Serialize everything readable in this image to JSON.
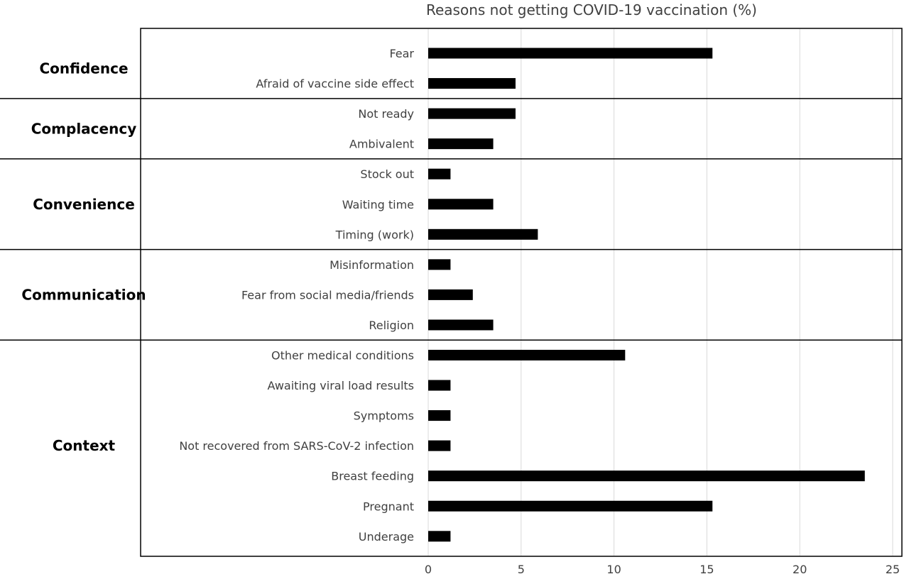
{
  "chart_data": {
    "type": "bar",
    "orientation": "horizontal",
    "title": "Reasons not getting COVID-19 vaccination (%)",
    "xlim": [
      0,
      25
    ],
    "xticks": [
      0,
      5,
      10,
      15,
      20,
      25
    ],
    "grid": true,
    "bar_color": "#000000",
    "groups": [
      {
        "name": "Confidence",
        "categories": [
          "Fear",
          "Afraid of vaccine side effect"
        ],
        "values": [
          15.3,
          4.7
        ]
      },
      {
        "name": "Complacency",
        "categories": [
          "Not ready",
          "Ambivalent"
        ],
        "values": [
          4.7,
          3.5
        ]
      },
      {
        "name": "Convenience",
        "categories": [
          "Stock out",
          "Waiting time",
          "Timing (work)"
        ],
        "values": [
          1.2,
          3.5,
          5.9
        ]
      },
      {
        "name": "Communication",
        "categories": [
          "Misinformation",
          "Fear from social media/friends",
          "Religion"
        ],
        "values": [
          1.2,
          2.4,
          3.5
        ]
      },
      {
        "name": "Context",
        "categories": [
          "Other medical conditions",
          "Awaiting viral load results",
          "Symptoms",
          "Not recovered from SARS-CoV-2 infection",
          "Breast feeding",
          "Pregnant",
          "Underage"
        ],
        "values": [
          10.6,
          1.2,
          1.2,
          1.2,
          23.5,
          15.3,
          1.2
        ]
      }
    ]
  }
}
